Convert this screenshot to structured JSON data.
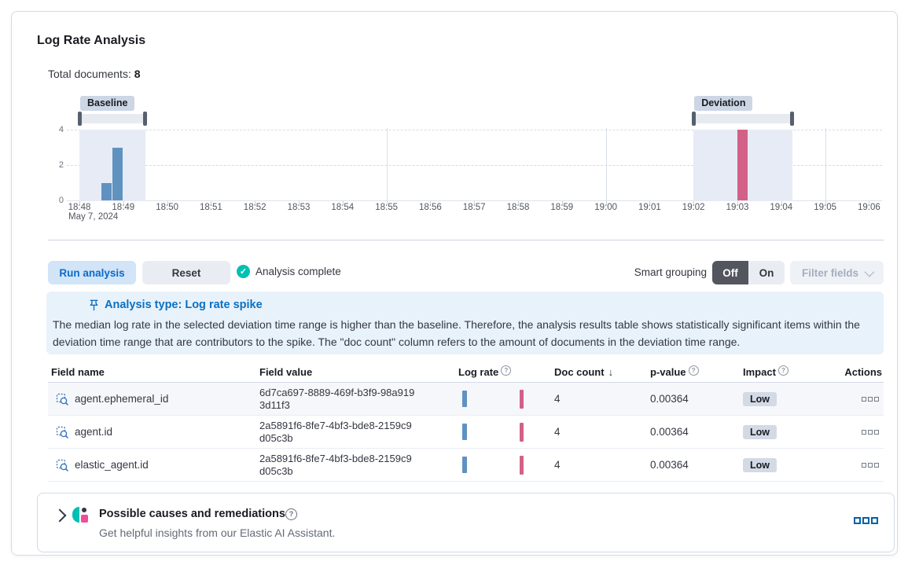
{
  "colors": {
    "primary_blue": "#0071c2",
    "success_teal": "#00bfb3",
    "bar_blue": "#6092c0",
    "bar_pink": "#d36086",
    "assistant_pink": "#f04e98",
    "window_fill": "#e7ebf5"
  },
  "panel": {
    "title": "Log Rate Analysis",
    "total_documents_label": "Total documents:",
    "total_documents_value": "8"
  },
  "chart_data": {
    "type": "bar",
    "title": "Document count histogram with baseline and deviation selections",
    "xlabel": "",
    "ylabel": "",
    "y_ticks": [
      0,
      2,
      4
    ],
    "ylim": [
      0,
      4
    ],
    "x_ticks": [
      "18:48",
      "18:49",
      "18:50",
      "18:51",
      "18:52",
      "18:53",
      "18:54",
      "18:55",
      "18:56",
      "18:57",
      "18:58",
      "18:59",
      "19:00",
      "19:01",
      "19:02",
      "19:03",
      "19:04",
      "19:05",
      "19:06"
    ],
    "x_date_label": "May 7, 2024",
    "major_vertical_gridlines": [
      "18:55",
      "19:00",
      "19:05"
    ],
    "bucket_seconds": 15,
    "bars": [
      {
        "time": "18:48:30",
        "value": 1,
        "series": "baseline"
      },
      {
        "time": "18:48:45",
        "value": 3,
        "series": "baseline"
      },
      {
        "time": "19:03:00",
        "value": 4,
        "series": "deviation"
      }
    ],
    "windows": [
      {
        "label": "Baseline",
        "start": "18:48:00",
        "end": "18:49:30"
      },
      {
        "label": "Deviation",
        "start": "19:02:00",
        "end": "19:04:15"
      }
    ]
  },
  "controls": {
    "run_button": "Run analysis",
    "reset_button": "Reset",
    "status_text": "Analysis complete",
    "smart_grouping_label": "Smart grouping",
    "smart_grouping_off": "Off",
    "smart_grouping_on": "On",
    "smart_grouping_selected": "Off",
    "filter_fields_button": "Filter fields"
  },
  "callout": {
    "title": "Analysis type: Log rate spike",
    "body": "The median log rate in the selected deviation time range is higher than the baseline. Therefore, the analysis results table shows statistically significant items within the deviation time range that are contributors to the spike. The \"doc count\" column refers to the amount of documents in the deviation time range."
  },
  "table": {
    "columns": [
      "Field name",
      "Field value",
      "Log rate",
      "Doc count",
      "p-value",
      "Impact",
      "Actions"
    ],
    "sorted_column": "Doc count",
    "sort_direction": "descending",
    "rows": [
      {
        "field_name": "agent.ephemeral_id",
        "field_value": "6d7ca697-8889-469f-b3f9-98a9193d11f3",
        "doc_count": "4",
        "p_value": "0.00364",
        "impact": "Low"
      },
      {
        "field_name": "agent.id",
        "field_value": "2a5891f6-8fe7-4bf3-bde8-2159c9d05c3b",
        "doc_count": "4",
        "p_value": "0.00364",
        "impact": "Low"
      },
      {
        "field_name": "elastic_agent.id",
        "field_value": "2a5891f6-8fe7-4bf3-bde8-2159c9d05c3b",
        "doc_count": "4",
        "p_value": "0.00364",
        "impact": "Low"
      }
    ]
  },
  "insights": {
    "title": "Possible causes and remediations",
    "subtitle": "Get helpful insights from our Elastic AI Assistant."
  }
}
